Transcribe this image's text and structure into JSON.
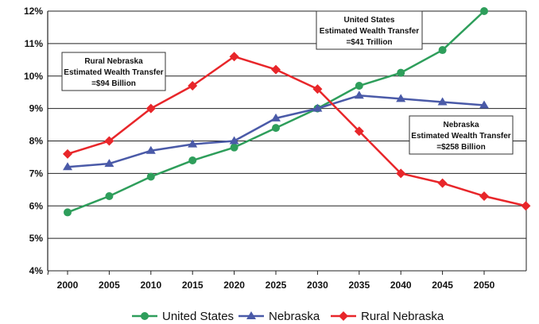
{
  "chart_data": {
    "type": "line",
    "x": [
      2000,
      2005,
      2010,
      2015,
      2020,
      2025,
      2030,
      2035,
      2040,
      2045,
      2050,
      2055
    ],
    "x_tick_labels": [
      "2000",
      "2005",
      "2010",
      "2015",
      "2020",
      "2025",
      "2030",
      "2035",
      "2040",
      "2045",
      "2050"
    ],
    "ylim": [
      4,
      12
    ],
    "y_ticks": [
      4,
      5,
      6,
      7,
      8,
      9,
      10,
      11,
      12
    ],
    "y_tick_labels": [
      "4%",
      "5%",
      "6%",
      "7%",
      "8%",
      "9%",
      "10%",
      "11%",
      "12%"
    ],
    "grid": "horizontal",
    "legend_position": "bottom",
    "series": [
      {
        "name": "United States",
        "color": "#2e9e5b",
        "marker": "circle",
        "values": [
          5.8,
          6.3,
          6.9,
          7.4,
          7.8,
          8.4,
          9.0,
          9.7,
          10.1,
          10.8,
          12.0,
          null
        ]
      },
      {
        "name": "Nebraska",
        "color": "#4a5aa8",
        "marker": "triangle",
        "values": [
          7.2,
          7.3,
          7.7,
          7.9,
          8.0,
          8.7,
          9.0,
          9.4,
          9.3,
          9.2,
          9.1,
          null
        ]
      },
      {
        "name": "Rural Nebraska",
        "color": "#e8262a",
        "marker": "diamond",
        "values": [
          7.6,
          8.0,
          9.0,
          9.7,
          10.6,
          10.2,
          9.6,
          8.3,
          7.0,
          6.7,
          6.3,
          6.0
        ]
      }
    ],
    "annotations": [
      {
        "lines": [
          "United States",
          "Estimated Wealth Transfer",
          "=$41 Trillion"
        ]
      },
      {
        "lines": [
          "Rural Nebraska",
          "Estimated Wealth Transfer",
          "=$94 Billion"
        ]
      },
      {
        "lines": [
          "Nebraska",
          "Estimated Wealth Transfer",
          "=$258 Billion"
        ]
      }
    ]
  }
}
